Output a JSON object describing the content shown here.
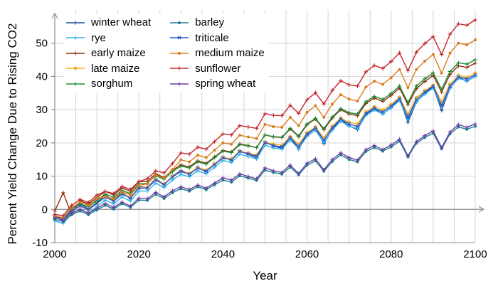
{
  "figure": {
    "background": "#ffffff"
  },
  "axes": {
    "grid_color": "#d4d4d4",
    "axis_color": "#8c8c8c",
    "baseline_color": "#a3a3a3",
    "text_color": "#000000"
  },
  "chart_data": {
    "type": "line",
    "title": "",
    "xlabel": "Year",
    "ylabel": "Percent Yield Change Due to Rising CO2",
    "xlim": [
      2000,
      2100
    ],
    "ylim": [
      -10,
      60
    ],
    "x_ticks": [
      2000,
      2020,
      2040,
      2060,
      2080,
      2100
    ],
    "y_ticks": [
      -10,
      0,
      10,
      20,
      30,
      40,
      50
    ],
    "x_minor_step": 5,
    "grid": true,
    "legend_position": "top-left",
    "legend_columns": 2,
    "x": [
      2000,
      2002,
      2004,
      2006,
      2008,
      2010,
      2012,
      2014,
      2016,
      2018,
      2020,
      2022,
      2024,
      2026,
      2028,
      2030,
      2032,
      2034,
      2036,
      2038,
      2040,
      2042,
      2044,
      2046,
      2048,
      2050,
      2052,
      2054,
      2056,
      2058,
      2060,
      2062,
      2064,
      2066,
      2068,
      2070,
      2072,
      2074,
      2076,
      2078,
      2080,
      2082,
      2084,
      2086,
      2088,
      2090,
      2092,
      2094,
      2096,
      2098,
      2100
    ],
    "series": [
      {
        "name": "winter wheat",
        "color": "#1f4899",
        "marker": "plus",
        "values": [
          -2.0,
          -3.0,
          0.1,
          1.7,
          0.1,
          2.1,
          4.3,
          2.7,
          5.0,
          3.4,
          6.8,
          6.6,
          9.2,
          7.5,
          10.0,
          11.7,
          10.7,
          12.7,
          11.4,
          13.6,
          15.8,
          14.8,
          17.6,
          16.6,
          15.5,
          20.3,
          19.1,
          18.4,
          21.6,
          18.1,
          22.5,
          24.4,
          19.8,
          24.1,
          27.1,
          25.1,
          24.0,
          28.6,
          30.3,
          28.7,
          30.6,
          33.2,
          26.2,
          32.3,
          34.9,
          36.8,
          29.8,
          36.5,
          39.7,
          38.6,
          40.0
        ]
      },
      {
        "name": "rye",
        "color": "#2fb3e8",
        "marker": "plus",
        "values": [
          -3.5,
          -4.2,
          -1.4,
          0.1,
          -1.1,
          0.8,
          2.8,
          1.6,
          3.7,
          2.5,
          5.5,
          5.5,
          7.9,
          6.6,
          8.9,
          10.5,
          9.8,
          11.6,
          10.7,
          12.7,
          14.7,
          14.1,
          16.6,
          15.9,
          15.2,
          19.3,
          18.5,
          18.1,
          20.9,
          18.2,
          22.0,
          23.8,
          20.1,
          23.9,
          26.5,
          25.0,
          24.3,
          28.3,
          29.9,
          28.7,
          30.5,
          32.8,
          27.1,
          32.4,
          34.7,
          36.5,
          30.8,
          36.6,
          39.4,
          38.7,
          40.0
        ]
      },
      {
        "name": "early maize",
        "color": "#8c2e0b",
        "marker": "plus",
        "values": [
          -0.5,
          5.0,
          -1.5,
          2.6,
          1.6,
          3.5,
          5.4,
          4.4,
          6.4,
          5.5,
          8.3,
          8.4,
          10.7,
          9.6,
          11.8,
          13.4,
          12.8,
          14.6,
          13.9,
          15.8,
          17.7,
          17.3,
          19.7,
          19.2,
          18.6,
          22.4,
          21.8,
          21.6,
          24.2,
          21.9,
          25.5,
          27.2,
          24.0,
          27.5,
          30.0,
          28.7,
          28.2,
          31.9,
          33.5,
          32.5,
          34.3,
          36.5,
          31.5,
          36.3,
          38.5,
          40.3,
          35.3,
          40.6,
          43.2,
          42.7,
          44.0
        ]
      },
      {
        "name": "late maize",
        "color": "#f2af1d",
        "marker": "diamond",
        "values": [
          -2.5,
          -3.0,
          -0.4,
          1.0,
          0.0,
          1.8,
          3.7,
          2.7,
          4.7,
          3.7,
          6.5,
          6.6,
          8.8,
          7.7,
          9.9,
          11.4,
          10.9,
          12.6,
          11.8,
          13.7,
          15.6,
          15.2,
          17.5,
          17.0,
          16.4,
          20.2,
          19.6,
          19.3,
          21.9,
          19.6,
          23.1,
          24.8,
          21.5,
          25.0,
          27.5,
          26.2,
          25.7,
          29.3,
          30.9,
          29.9,
          31.6,
          33.7,
          28.7,
          33.6,
          35.7,
          37.4,
          32.4,
          37.7,
          40.3,
          39.7,
          41.0
        ]
      },
      {
        "name": "sorghum",
        "color": "#1e8b33",
        "marker": "plus",
        "values": [
          -2.0,
          -2.5,
          0.2,
          1.7,
          0.8,
          2.7,
          4.6,
          3.7,
          5.7,
          4.8,
          7.7,
          7.8,
          10.1,
          9.1,
          11.4,
          13.0,
          12.5,
          14.3,
          13.6,
          15.6,
          17.5,
          17.1,
          19.5,
          19.1,
          18.6,
          22.4,
          21.9,
          21.7,
          24.4,
          22.1,
          25.7,
          27.4,
          24.3,
          27.8,
          30.3,
          29.1,
          28.7,
          32.4,
          34.0,
          33.1,
          34.9,
          37.1,
          32.1,
          37.1,
          39.3,
          41.1,
          36.1,
          41.5,
          44.1,
          43.7,
          45.0
        ]
      },
      {
        "name": "barley",
        "color": "#1c7f8e",
        "marker": "dot",
        "values": [
          -3.0,
          -3.7,
          -1.6,
          -0.5,
          -1.6,
          -0.2,
          1.2,
          0.1,
          1.7,
          0.6,
          2.8,
          2.7,
          4.5,
          3.3,
          5.0,
          6.2,
          5.5,
          6.8,
          5.9,
          7.4,
          8.8,
          8.2,
          10.1,
          9.4,
          8.7,
          11.8,
          11.1,
          10.6,
          12.7,
          10.4,
          13.3,
          14.6,
          11.5,
          14.4,
          16.4,
          15.0,
          14.3,
          17.4,
          18.6,
          17.5,
          18.8,
          20.5,
          15.8,
          19.9,
          21.6,
          22.9,
          18.2,
          22.7,
          24.8,
          24.1,
          25.0
        ]
      },
      {
        "name": "triticale",
        "color": "#2b50d0",
        "marker": "x",
        "values": [
          -2.5,
          -3.2,
          -0.4,
          1.1,
          -0.1,
          1.8,
          3.7,
          2.5,
          4.6,
          3.4,
          6.4,
          6.4,
          8.8,
          7.5,
          9.8,
          11.4,
          10.6,
          12.4,
          11.5,
          13.5,
          15.5,
          14.9,
          17.4,
          16.7,
          16.0,
          20.1,
          19.2,
          18.8,
          21.6,
          18.9,
          22.7,
          24.5,
          20.8,
          24.6,
          27.2,
          25.7,
          24.9,
          28.9,
          30.5,
          29.3,
          31.1,
          33.4,
          27.7,
          33.0,
          35.3,
          37.1,
          31.3,
          37.1,
          39.9,
          39.2,
          40.5
        ]
      },
      {
        "name": "medium maize",
        "color": "#d97e1f",
        "marker": "dot",
        "values": [
          -2.0,
          -2.5,
          0.5,
          2.2,
          1.2,
          3.3,
          3.9,
          3.2,
          5.3,
          4.4,
          7.2,
          7.7,
          10.3,
          9.4,
          12.0,
          14.9,
          14.3,
          16.3,
          15.6,
          17.8,
          20.0,
          19.6,
          22.3,
          21.8,
          21.3,
          25.6,
          24.9,
          24.7,
          27.7,
          25.2,
          29.2,
          31.2,
          27.7,
          31.7,
          34.5,
          33.2,
          32.6,
          36.8,
          38.6,
          37.6,
          39.6,
          42.1,
          36.6,
          42.1,
          44.6,
          46.6,
          41.0,
          47.0,
          50.0,
          49.5,
          51.0
        ]
      },
      {
        "name": "sunflower",
        "color": "#c1272d",
        "marker": "plus",
        "values": [
          -1.5,
          -1.9,
          1.2,
          3.0,
          2.1,
          4.3,
          5.4,
          4.8,
          6.9,
          6.0,
          8.4,
          9.2,
          11.6,
          11.0,
          13.8,
          17.0,
          16.6,
          18.7,
          18.1,
          20.4,
          22.7,
          22.4,
          25.2,
          24.8,
          24.4,
          28.8,
          28.3,
          28.2,
          31.3,
          28.9,
          33.0,
          35.1,
          31.7,
          35.8,
          38.7,
          37.5,
          37.1,
          41.4,
          43.3,
          42.4,
          44.5,
          47.1,
          41.7,
          47.3,
          49.9,
          52.0,
          46.6,
          52.7,
          55.8,
          55.4,
          57.0
        ]
      },
      {
        "name": "spring wheat",
        "color": "#6a3fa5",
        "marker": "plus",
        "values": [
          -2.5,
          -3.3,
          -1.1,
          0.0,
          -1.2,
          0.3,
          1.8,
          0.6,
          2.2,
          1.0,
          3.4,
          3.2,
          5.1,
          3.8,
          5.6,
          6.8,
          6.0,
          7.3,
          6.4,
          7.9,
          9.5,
          8.8,
          10.7,
          9.9,
          9.2,
          12.5,
          11.6,
          11.1,
          13.3,
          10.8,
          13.9,
          15.2,
          11.9,
          15.0,
          17.0,
          15.6,
          14.8,
          18.0,
          19.2,
          18.0,
          19.4,
          21.1,
          16.1,
          20.4,
          22.2,
          23.6,
          18.6,
          23.3,
          25.5,
          24.7,
          25.7
        ]
      }
    ]
  }
}
